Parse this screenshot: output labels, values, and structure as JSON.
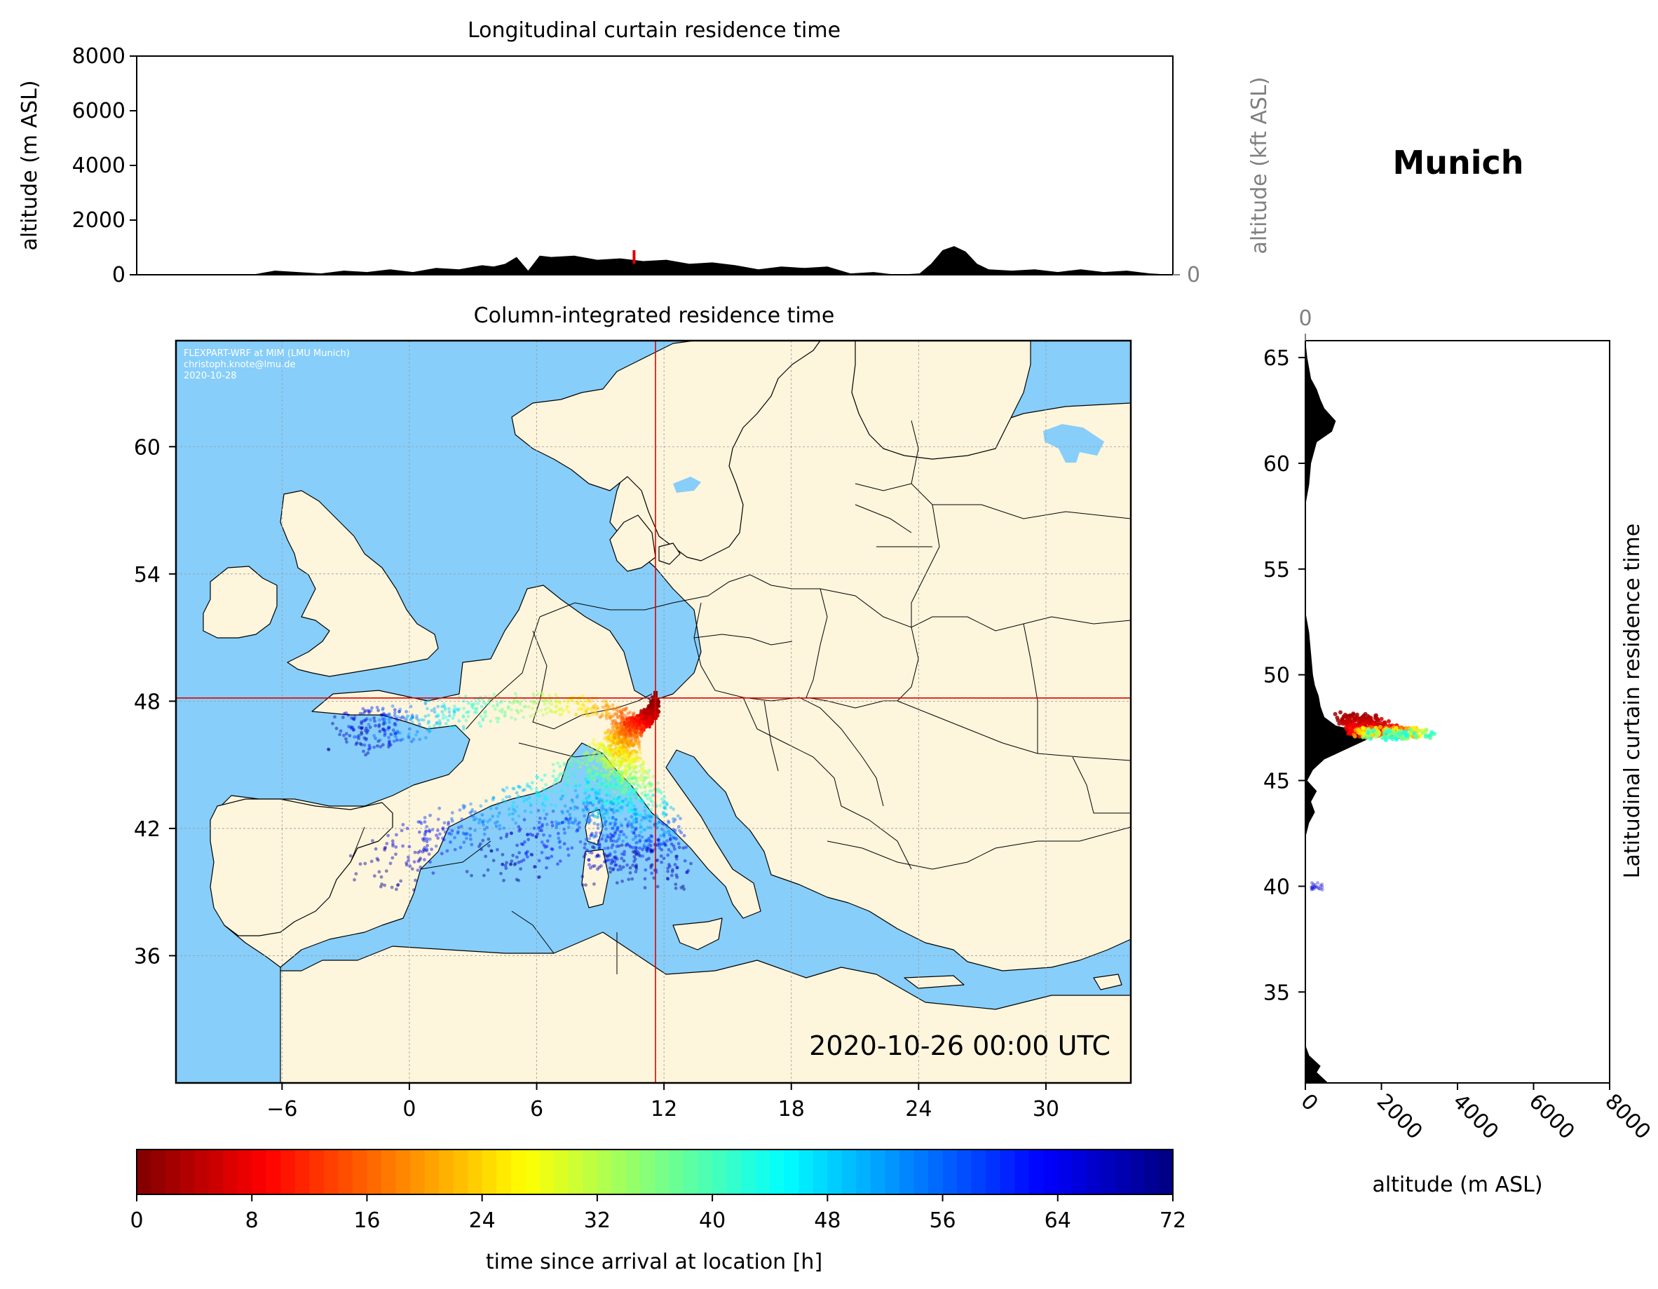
{
  "place_title": "Munich",
  "timestamp": "2020-10-26 00:00 UTC",
  "watermark": [
    "FLEXPART-WRF at MIM (LMU Munich)",
    "christoph.knote@lmu.de",
    "2020-10-28"
  ],
  "colors": {
    "ocean": "#87cefa",
    "land": "#fdf5dc",
    "terrain": "#000000",
    "crosshair": "#e00000",
    "secondary_axis": "#808080"
  },
  "chart_data": [
    {
      "type": "area",
      "title": "Longitudinal curtain residence time",
      "xlabel": "",
      "ylabel": "altitude (m ASL)",
      "ylabel_right": "altitude (kft ASL)",
      "xlim": [
        -10,
        35
      ],
      "ylim": [
        0,
        8000
      ],
      "yticks": [
        "0",
        "2000",
        "4000",
        "6000",
        "8000"
      ],
      "yticks_right": [
        "0",
        "50",
        "100"
      ],
      "grid_right_kft": [
        0,
        50,
        100
      ],
      "terrain_lon": [
        -10,
        -5,
        -4,
        -3,
        -2,
        -1,
        0,
        1,
        2,
        3,
        4,
        5,
        5.5,
        6,
        6.5,
        7,
        7.5,
        8,
        9,
        10,
        11,
        12,
        13,
        14,
        15,
        16,
        17,
        18,
        19,
        20,
        21,
        22,
        23,
        24,
        24.5,
        25,
        25.5,
        26,
        26.5,
        27,
        28,
        29,
        30,
        31,
        32,
        33,
        34,
        35
      ],
      "terrain_alt": [
        0,
        0,
        150,
        100,
        50,
        150,
        100,
        200,
        100,
        250,
        200,
        350,
        300,
        400,
        650,
        150,
        700,
        650,
        700,
        550,
        600,
        500,
        550,
        400,
        450,
        350,
        200,
        300,
        250,
        300,
        50,
        100,
        0,
        50,
        400,
        900,
        1050,
        850,
        400,
        200,
        150,
        200,
        100,
        200,
        100,
        150,
        50,
        0
      ],
      "residence_spike": {
        "lon": 11.6,
        "alt_range": [
          400,
          900
        ]
      }
    },
    {
      "type": "heatmap",
      "title": "Column-integrated residence time",
      "xlim": [
        -11,
        34
      ],
      "ylim": [
        30,
        65
      ],
      "xticks": [
        -6,
        0,
        6,
        12,
        18,
        24,
        30
      ],
      "yticks": [
        36,
        42,
        48,
        54,
        60
      ],
      "grid": true,
      "receptor": {
        "lon": 11.6,
        "lat": 48.15
      },
      "plume_branches": [
        {
          "hours": [
            0,
            3,
            6,
            10,
            14,
            18,
            22,
            26,
            30,
            36,
            42,
            48,
            54,
            60,
            66,
            72
          ],
          "lon": [
            11.6,
            11.6,
            11.4,
            11.0,
            10.2,
            9.5,
            8.8,
            8.0,
            7.0,
            5.0,
            3.0,
            1.5,
            -0.5,
            -1.5,
            -2.0,
            -2.5
          ],
          "lat": [
            48.1,
            47.6,
            47.3,
            47.0,
            47.2,
            47.5,
            47.7,
            47.8,
            47.9,
            47.8,
            47.6,
            47.3,
            47.0,
            46.8,
            46.6,
            46.5
          ]
        },
        {
          "hours": [
            0,
            4,
            8,
            12,
            16,
            20,
            26,
            32,
            38,
            44,
            50,
            56,
            62,
            68,
            72
          ],
          "lon": [
            11.6,
            11.4,
            11.0,
            10.5,
            10.0,
            9.8,
            9.5,
            9.0,
            8.0,
            6.5,
            4.8,
            3.0,
            1.0,
            -0.5,
            -1.5
          ],
          "lat": [
            48.0,
            47.3,
            47.0,
            47.0,
            46.9,
            46.5,
            46.0,
            45.4,
            44.8,
            44.0,
            43.2,
            42.3,
            41.5,
            40.5,
            39.8
          ]
        },
        {
          "hours": [
            0,
            6,
            12,
            18,
            24,
            30,
            36,
            42,
            48,
            54,
            60,
            66,
            72
          ],
          "lon": [
            11.6,
            11.0,
            10.4,
            10.0,
            9.8,
            9.6,
            9.4,
            9.2,
            8.8,
            8.0,
            7.0,
            5.5,
            4.0
          ],
          "lat": [
            48.0,
            47.2,
            46.9,
            46.4,
            46.0,
            45.4,
            44.8,
            44.2,
            43.5,
            42.7,
            41.8,
            41.0,
            40.3
          ]
        },
        {
          "hours": [
            0,
            6,
            12,
            18,
            24,
            32,
            40,
            48,
            56,
            64,
            72
          ],
          "lon": [
            11.6,
            11.2,
            10.6,
            10.2,
            10.0,
            9.9,
            9.8,
            9.7,
            9.6,
            9.5,
            9.4
          ],
          "lat": [
            48.0,
            47.2,
            46.7,
            46.2,
            45.5,
            44.7,
            43.8,
            43.0,
            42.0,
            41.0,
            40.0
          ]
        },
        {
          "hours": [
            0,
            6,
            12,
            18,
            24,
            32,
            40,
            48,
            56,
            64,
            72
          ],
          "lon": [
            11.6,
            11.2,
            10.7,
            10.4,
            10.3,
            10.6,
            11.0,
            11.4,
            11.7,
            11.8,
            11.9
          ],
          "lat": [
            48.0,
            47.1,
            46.7,
            46.2,
            45.5,
            44.6,
            43.7,
            42.7,
            41.7,
            40.8,
            40.0
          ]
        }
      ]
    },
    {
      "type": "area",
      "title": "Latitudinal curtain residence time",
      "xlabel": "altitude (m ASL)",
      "xlabel_top": "",
      "xlim": [
        0,
        8000
      ],
      "ylim": [
        30.7,
        65.8
      ],
      "xticks": [
        "0",
        "2000",
        "4000",
        "6000",
        "8000"
      ],
      "xticks_top": [
        "0",
        "50",
        "100"
      ],
      "grid_top_kft": [
        0,
        50,
        100
      ],
      "yticks": [
        35,
        40,
        45,
        50,
        55,
        60,
        65
      ],
      "terrain_lat": [
        30.7,
        31.2,
        31.5,
        32.0,
        32.5,
        58.0,
        59.0,
        60.0,
        61.0,
        61.5,
        62.0,
        62.3,
        62.6,
        63.0,
        63.5,
        64.0,
        64.5,
        65.0,
        65.8
      ],
      "terrain_alt": [
        600,
        300,
        400,
        100,
        0,
        0,
        100,
        150,
        300,
        700,
        800,
        650,
        500,
        400,
        300,
        150,
        100,
        50,
        0
      ],
      "terrain2_lat": [
        42.3,
        43.0,
        43.5,
        44.0,
        44.5,
        45.0,
        45.5,
        46.0,
        46.5,
        47.0,
        47.3,
        47.6,
        48.0,
        48.5,
        49.0,
        49.5,
        50.0,
        51.0,
        52.0,
        53.0
      ],
      "terrain2_alt": [
        0,
        100,
        250,
        150,
        300,
        50,
        200,
        500,
        1100,
        1700,
        1500,
        800,
        500,
        400,
        350,
        250,
        200,
        150,
        100,
        0
      ],
      "plume": [
        {
          "hours": 2,
          "lat": 48.0,
          "alt": 1700
        },
        {
          "hours": 6,
          "lat": 47.6,
          "alt": 2200
        },
        {
          "hours": 10,
          "lat": 47.3,
          "alt": 2600
        },
        {
          "hours": 24,
          "lat": 47.3,
          "alt": 3000
        },
        {
          "hours": 44,
          "lat": 47.1,
          "alt": 3500
        },
        {
          "hours": 66,
          "lat": 40.0,
          "alt": 300
        }
      ]
    }
  ],
  "colorbar": {
    "label": "time since arrival at location [h]",
    "min": 0,
    "max": 72,
    "ticks": [
      "0",
      "8",
      "16",
      "24",
      "32",
      "40",
      "48",
      "56",
      "64",
      "72"
    ],
    "bins": 72,
    "colormap": "jet_reversed"
  }
}
